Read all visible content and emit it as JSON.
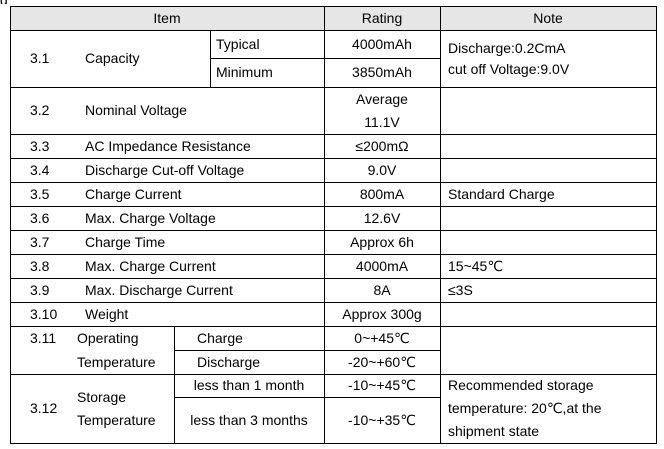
{
  "cropped_top_fragment": "g",
  "header": {
    "item": "Item",
    "rating": "Rating",
    "note": "Note"
  },
  "rows": [
    {
      "no": "3.1",
      "item": "Capacity",
      "sub": [
        {
          "label": "Typical",
          "rating": "4000mAh"
        },
        {
          "label": "Minimum",
          "rating": "3850mAh"
        }
      ],
      "note": [
        "Discharge:0.2CmA",
        "cut off Voltage:9.0V"
      ]
    },
    {
      "no": "3.2",
      "item": "Nominal Voltage",
      "rating": [
        "Average",
        "11.1V"
      ],
      "note": ""
    },
    {
      "no": "3.3",
      "item": "AC Impedance Resistance",
      "rating": "≤200mΩ",
      "note": ""
    },
    {
      "no": "3.4",
      "item": "Discharge Cut-off Voltage",
      "rating": "9.0V",
      "note": ""
    },
    {
      "no": "3.5",
      "item": "Charge Current",
      "rating": "800mA",
      "note": "Standard Charge"
    },
    {
      "no": "3.6",
      "item": "Max. Charge Voltage",
      "rating": "12.6V",
      "note": ""
    },
    {
      "no": "3.7",
      "item": "Charge Time",
      "rating": "Approx 6h",
      "note": ""
    },
    {
      "no": "3.8",
      "item": "Max. Charge Current",
      "rating": "4000mA",
      "note": "15~45℃"
    },
    {
      "no": "3.9",
      "item": "Max. Discharge Current",
      "rating": "8A",
      "note": "≤3S"
    },
    {
      "no": "3.10",
      "item": "Weight",
      "rating": "Approx 300g",
      "note": ""
    },
    {
      "no": "3.11",
      "item": [
        "Operating",
        "Temperature"
      ],
      "sub": [
        {
          "label": "Charge",
          "rating": "0~+45℃"
        },
        {
          "label": "Discharge",
          "rating": "-20~+60℃"
        }
      ],
      "note": ""
    },
    {
      "no": "3.12",
      "item": [
        "Storage",
        "Temperature"
      ],
      "sub": [
        {
          "label": "less than 1 month",
          "rating": "-10~+45℃"
        },
        {
          "label": "less than 3 months",
          "rating": "-10~+35℃"
        }
      ],
      "note": [
        "Recommended storage",
        "temperature: 20℃,at the",
        "shipment state"
      ]
    }
  ]
}
